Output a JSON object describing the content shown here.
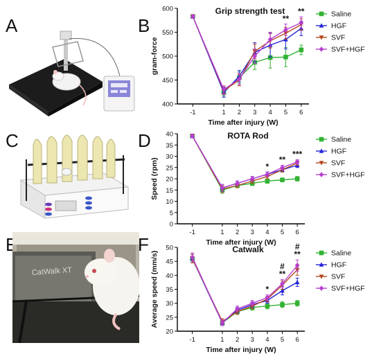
{
  "panels": {
    "A": "A",
    "B": "B",
    "C": "C",
    "D": "D",
    "E": "E",
    "F": "F"
  },
  "illustrations": {
    "catwalk_label": "CatWalk XT"
  },
  "colors": {
    "Saline": "#33b233",
    "HGF": "#2323d8",
    "SVF": "#b4471e",
    "SVF+HGF": "#b63fd0"
  },
  "chart_data": [
    {
      "type": "line",
      "title": "Grip strength test",
      "xlabel": "Time after injury  (W)",
      "ylabel": "gram-force",
      "x": [
        -1,
        1,
        2,
        3,
        4,
        5,
        6
      ],
      "xticks": [
        "-1",
        "1",
        "2",
        "3",
        "4",
        "5",
        "6"
      ],
      "ylim": [
        400,
        600
      ],
      "yticks": [
        "400",
        "450",
        "500",
        "550",
        "600"
      ],
      "series": [
        {
          "name": "Saline",
          "values": [
            583,
            425,
            455,
            487,
            497,
            498,
            513
          ],
          "err": [
            3,
            8,
            12,
            15,
            22,
            20,
            10
          ]
        },
        {
          "name": "HGF",
          "values": [
            583,
            424,
            458,
            508,
            523,
            535,
            558
          ],
          "err": [
            3,
            10,
            12,
            20,
            25,
            20,
            15
          ]
        },
        {
          "name": "SVF",
          "values": [
            583,
            428,
            450,
            510,
            532,
            548,
            566
          ],
          "err": [
            3,
            8,
            12,
            15,
            15,
            12,
            12
          ]
        },
        {
          "name": "SVF+HGF",
          "values": [
            583,
            430,
            452,
            500,
            535,
            555,
            570
          ],
          "err": [
            3,
            8,
            12,
            15,
            15,
            12,
            12
          ]
        }
      ],
      "annotations": [
        {
          "x": 5,
          "text": "**"
        },
        {
          "x": 6,
          "text": "**"
        }
      ],
      "legend": "right"
    },
    {
      "type": "line",
      "title": "ROTA Rod",
      "xlabel": "Time after injury  (W)",
      "ylabel": "Speed (rpm)",
      "x": [
        -1,
        1,
        2,
        3,
        4,
        5,
        6
      ],
      "xticks": [
        "-1",
        "1",
        "2",
        "3",
        "4",
        "5",
        "6"
      ],
      "ylim": [
        0,
        40
      ],
      "yticks": [
        "0",
        "5",
        "10",
        "15",
        "20",
        "25",
        "30",
        "35",
        "40"
      ],
      "series": [
        {
          "name": "Saline",
          "values": [
            39,
            15,
            17,
            18,
            19,
            19.5,
            20
          ],
          "err": [
            0.8,
            1.5,
            1,
            1,
            1,
            0.8,
            1
          ]
        },
        {
          "name": "HGF",
          "values": [
            39,
            16,
            18,
            20,
            22,
            24,
            26
          ],
          "err": [
            0.8,
            1.5,
            1,
            1,
            1,
            1,
            1
          ]
        },
        {
          "name": "SVF",
          "values": [
            39,
            15.5,
            17,
            19,
            21,
            24,
            27
          ],
          "err": [
            0.8,
            1.5,
            1,
            1,
            1,
            1,
            1
          ]
        },
        {
          "name": "SVF+HGF",
          "values": [
            39,
            16,
            18,
            20,
            22,
            25,
            27.5
          ],
          "err": [
            0.8,
            1.5,
            1,
            1,
            1,
            1,
            1
          ]
        }
      ],
      "annotations": [
        {
          "x": 4,
          "text": "*"
        },
        {
          "x": 5,
          "text": "**"
        },
        {
          "x": 6,
          "text": "***"
        }
      ],
      "legend": "right"
    },
    {
      "type": "line",
      "title": "Catwalk",
      "xlabel": "Time after injury  (W)",
      "ylabel": "Average speed (mm/s)",
      "x": [
        -1,
        1,
        2,
        3,
        4,
        5,
        6
      ],
      "xticks": [
        "-1",
        "1",
        "2",
        "3",
        "4",
        "5",
        "6"
      ],
      "ylim": [
        20,
        50
      ],
      "yticks": [
        "20",
        "25",
        "30",
        "35",
        "40",
        "45",
        "50"
      ],
      "series": [
        {
          "name": "Saline",
          "values": [
            46,
            23,
            27,
            28.5,
            29,
            29.5,
            30
          ],
          "err": [
            1.5,
            1,
            1,
            1,
            1,
            1,
            1
          ]
        },
        {
          "name": "HGF",
          "values": [
            46,
            23,
            27.5,
            29.5,
            31,
            34.5,
            37.5
          ],
          "err": [
            1.5,
            1,
            1,
            1,
            1,
            1.5,
            1.5
          ]
        },
        {
          "name": "SVF",
          "values": [
            46,
            23.5,
            27,
            29,
            31.5,
            36.5,
            42
          ],
          "err": [
            1.5,
            1,
            1,
            1,
            1,
            1.5,
            2
          ]
        },
        {
          "name": "SVF+HGF",
          "values": [
            46.5,
            23,
            28,
            30,
            32,
            37,
            43.5
          ],
          "err": [
            1.5,
            1,
            1,
            1,
            1,
            1.5,
            2
          ]
        }
      ],
      "annotations": [
        {
          "x": 4,
          "text": "*"
        },
        {
          "x": 5,
          "text": "**"
        },
        {
          "x": 5,
          "text": "#"
        },
        {
          "x": 6,
          "text": "**"
        },
        {
          "x": 6,
          "text": "#"
        }
      ],
      "legend": "right"
    }
  ]
}
